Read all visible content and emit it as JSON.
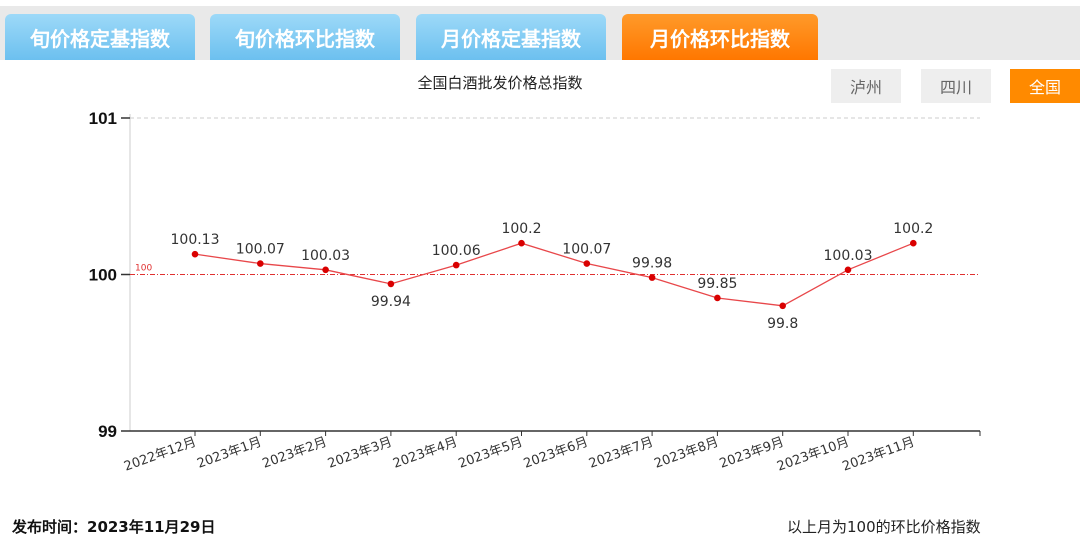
{
  "tabs": [
    {
      "label": "旬价格定基指数"
    },
    {
      "label": "旬价格环比指数"
    },
    {
      "label": "月价格定基指数"
    },
    {
      "label": "月价格环比指数",
      "active": true
    }
  ],
  "regions": [
    {
      "label": "泸州"
    },
    {
      "label": "四川"
    },
    {
      "label": "全国",
      "active": true
    }
  ],
  "footer": {
    "publish": "发布时间：2023年11月29日",
    "note": "以上月为100的环比价格指数"
  },
  "colors": {
    "line": "#e8474a",
    "point": "#d90000",
    "accent": "#ff8a00"
  },
  "chart_data": {
    "type": "line",
    "title": "全国白酒批发价格总指数",
    "categories": [
      "2022年12月",
      "2023年1月",
      "2023年2月",
      "2023年3月",
      "2023年4月",
      "2023年5月",
      "2023年6月",
      "2023年7月",
      "2023年8月",
      "2023年9月",
      "2023年10月",
      "2023年11月"
    ],
    "values": [
      100.13,
      100.07,
      100.03,
      99.94,
      100.06,
      100.2,
      100.07,
      99.98,
      99.85,
      99.8,
      100.03,
      100.2
    ],
    "labels": [
      "100.13",
      "100.07",
      "100.03",
      "99.94",
      "100.06",
      "100.2",
      "100.07",
      "99.98",
      "99.85",
      "99.8",
      "100.03",
      "100.2"
    ],
    "ylim": [
      99,
      101
    ],
    "yticks": [
      "99",
      "100",
      "101"
    ],
    "reference_line": {
      "value": 100,
      "label": "100"
    }
  }
}
